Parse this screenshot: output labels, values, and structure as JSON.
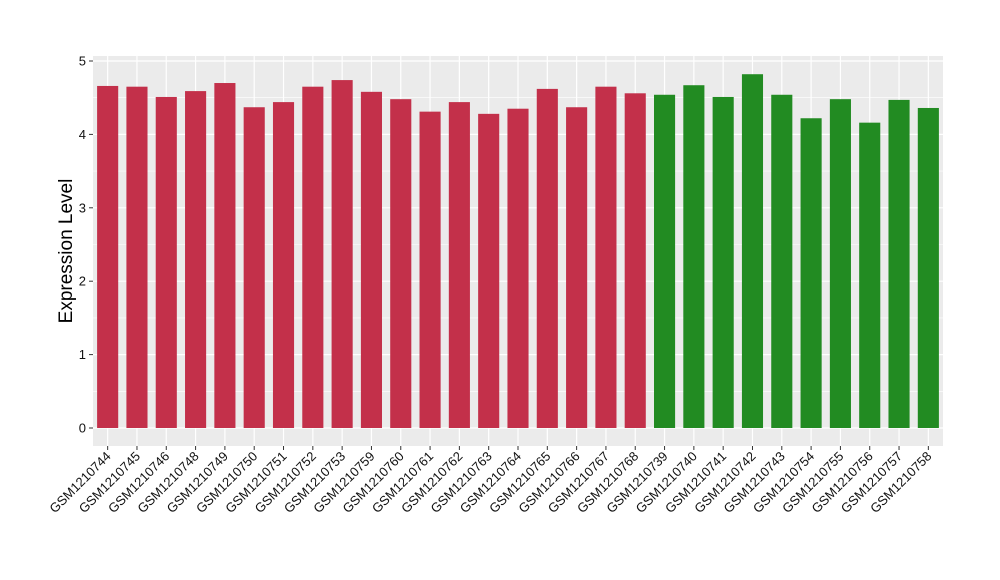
{
  "chart_data": {
    "type": "bar",
    "title": "",
    "xlabel": "",
    "ylabel": "Expression Level",
    "ylim": [
      0,
      5
    ],
    "yticks": [
      0,
      1,
      2,
      3,
      4,
      5
    ],
    "grid": true,
    "categories": [
      "GSM1210744",
      "GSM1210745",
      "GSM1210746",
      "GSM1210748",
      "GSM1210749",
      "GSM1210750",
      "GSM1210751",
      "GSM1210752",
      "GSM1210753",
      "GSM1210759",
      "GSM1210760",
      "GSM1210761",
      "GSM1210762",
      "GSM1210763",
      "GSM1210764",
      "GSM1210765",
      "GSM1210766",
      "GSM1210767",
      "GSM1210768",
      "GSM1210739",
      "GSM1210740",
      "GSM1210741",
      "GSM1210742",
      "GSM1210743",
      "GSM1210754",
      "GSM1210755",
      "GSM1210756",
      "GSM1210757",
      "GSM1210758"
    ],
    "values": [
      4.66,
      4.65,
      4.51,
      4.59,
      4.7,
      4.37,
      4.44,
      4.65,
      4.74,
      4.58,
      4.48,
      4.31,
      4.44,
      4.28,
      4.35,
      4.62,
      4.37,
      4.65,
      4.56,
      4.54,
      4.67,
      4.51,
      4.82,
      4.54,
      4.22,
      4.48,
      4.16,
      4.47,
      4.36
    ],
    "groups": [
      "red",
      "red",
      "red",
      "red",
      "red",
      "red",
      "red",
      "red",
      "red",
      "red",
      "red",
      "red",
      "red",
      "red",
      "red",
      "red",
      "red",
      "red",
      "red",
      "green",
      "green",
      "green",
      "green",
      "green",
      "green",
      "green",
      "green",
      "green",
      "green"
    ],
    "colors": {
      "red": "#C3304A",
      "green": "#228B22",
      "panel": "#EBEBEB",
      "grid": "#FFFFFF"
    }
  }
}
